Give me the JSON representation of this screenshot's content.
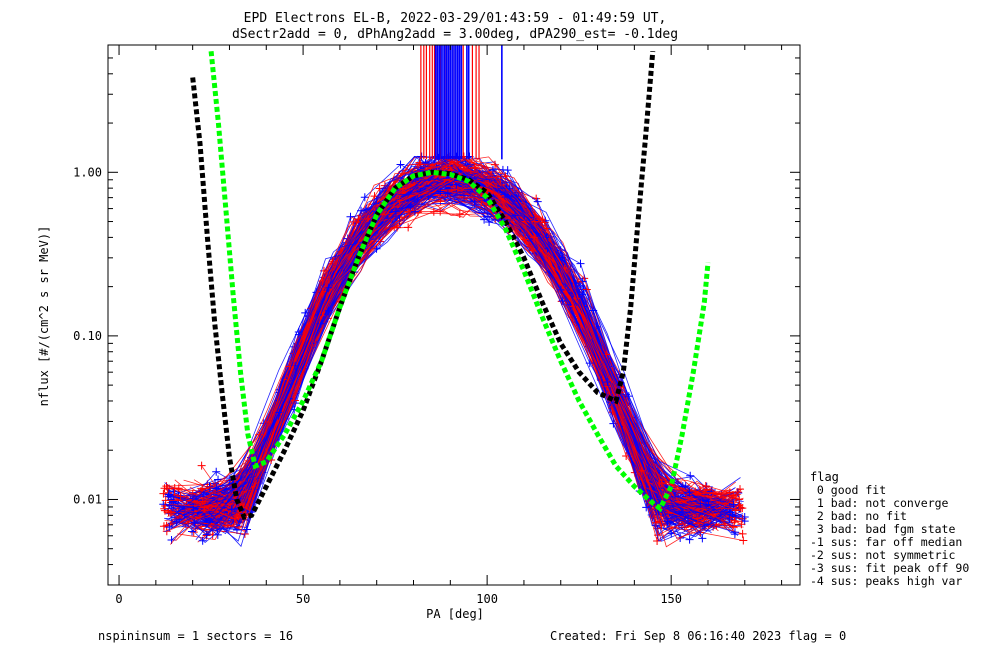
{
  "chart_data": {
    "type": "line",
    "title": "EPD Electrons EL-B, 2022-03-29/01:43:59 - 01:49:59 UT,",
    "subtitle": "dSectr2add = 0, dPhAng2add = 3.00deg, dPA290_est=  -0.1deg",
    "xlabel": "PA [deg]",
    "ylabel": "nflux [#/(cm^2 s sr MeV)]",
    "xlim": [
      -3,
      185
    ],
    "ylim": [
      0.003,
      6.0
    ],
    "yscale": "log",
    "xticks": [
      {
        "v": 0,
        "label": "0"
      },
      {
        "v": 50,
        "label": "50"
      },
      {
        "v": 100,
        "label": "100"
      },
      {
        "v": 150,
        "label": "150"
      }
    ],
    "yticks": [
      {
        "v": 0.01,
        "label": "0.01"
      },
      {
        "v": 0.1,
        "label": "0.10"
      },
      {
        "v": 1.0,
        "label": "1.00"
      }
    ],
    "legend_title": "flag",
    "legend": [
      " 0 good fit",
      " 1 bad: not converge",
      " 2 bad: no fit",
      " 3 bad: bad fgm state",
      "-1 sus: far off median",
      "-2 sus: not symmetric",
      "-3 sus: fit peak off 90",
      "-4 sus: peaks high var"
    ],
    "footer_left": "nspininsum =  1  sectors = 16",
    "footer_right": "Created: Fri Sep  8 06:16:40 2023   flag = 0",
    "colors": {
      "red": "#ff0000",
      "blue": "#0000ff",
      "black": "#000000",
      "green": "#00ff00"
    },
    "series": [
      {
        "color": "black",
        "style": "dotted-thick",
        "x": [
          20,
          22,
          24,
          26,
          28,
          30,
          32,
          34,
          36,
          40,
          45,
          50,
          55,
          60,
          65,
          70,
          75,
          80,
          85,
          90,
          95,
          100,
          105,
          110,
          115,
          120,
          125,
          130,
          135,
          137,
          139,
          141,
          143,
          145
        ],
        "y": [
          3.8,
          1.5,
          0.4,
          0.12,
          0.045,
          0.018,
          0.01,
          0.0078,
          0.008,
          0.012,
          0.02,
          0.035,
          0.07,
          0.15,
          0.3,
          0.55,
          0.8,
          0.95,
          1.0,
          0.98,
          0.9,
          0.75,
          0.5,
          0.3,
          0.16,
          0.09,
          0.06,
          0.045,
          0.04,
          0.06,
          0.15,
          0.5,
          1.6,
          5.5
        ]
      },
      {
        "color": "green",
        "style": "dotted-thick",
        "x": [
          25,
          27,
          29,
          31,
          33,
          35,
          37,
          40,
          45,
          50,
          55,
          60,
          65,
          70,
          75,
          80,
          85,
          90,
          95,
          100,
          105,
          110,
          115,
          120,
          125,
          130,
          135,
          140,
          145,
          147,
          150,
          153,
          156,
          159,
          160
        ],
        "y": [
          5.5,
          2.0,
          0.6,
          0.18,
          0.06,
          0.025,
          0.016,
          0.017,
          0.025,
          0.04,
          0.07,
          0.15,
          0.3,
          0.55,
          0.8,
          0.95,
          1.0,
          0.97,
          0.88,
          0.7,
          0.45,
          0.25,
          0.13,
          0.07,
          0.04,
          0.025,
          0.016,
          0.012,
          0.0095,
          0.0088,
          0.012,
          0.025,
          0.06,
          0.16,
          0.28
        ]
      }
    ],
    "red_spikes_x": [
      82.0,
      82.8,
      83.5,
      84.4,
      85.1,
      85.7,
      86.4,
      87.2,
      88.6,
      89.5,
      91.0,
      92.0,
      93.5,
      96.0,
      97.0,
      97.8
    ],
    "blue_spikes_x": [
      86.0,
      86.5,
      87.0,
      87.5,
      88.0,
      88.5,
      89.0,
      89.5,
      90.0,
      90.5,
      91.0,
      91.5,
      92.0,
      92.5,
      93.0,
      94.5,
      95.0,
      104.0
    ]
  }
}
